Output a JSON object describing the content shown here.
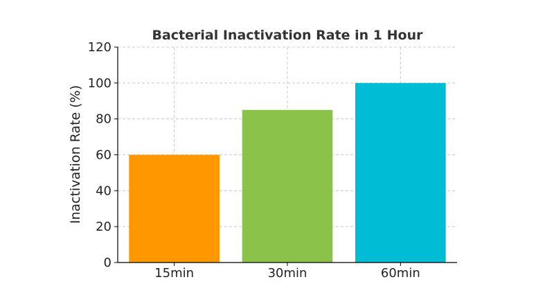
{
  "chart_data": {
    "type": "bar",
    "title": "Bacterial Inactivation Rate in 1 Hour",
    "xlabel": "",
    "ylabel": "Inactivation Rate (%)",
    "categories": [
      "15min",
      "30min",
      "60min"
    ],
    "values": [
      60,
      85,
      100
    ],
    "colors": [
      "#ff9800",
      "#8bc34a",
      "#00bcd4"
    ],
    "ylim": [
      0,
      120
    ],
    "yticks": [
      0,
      20,
      40,
      60,
      80,
      100,
      120
    ],
    "grid": true,
    "legend": "none"
  }
}
